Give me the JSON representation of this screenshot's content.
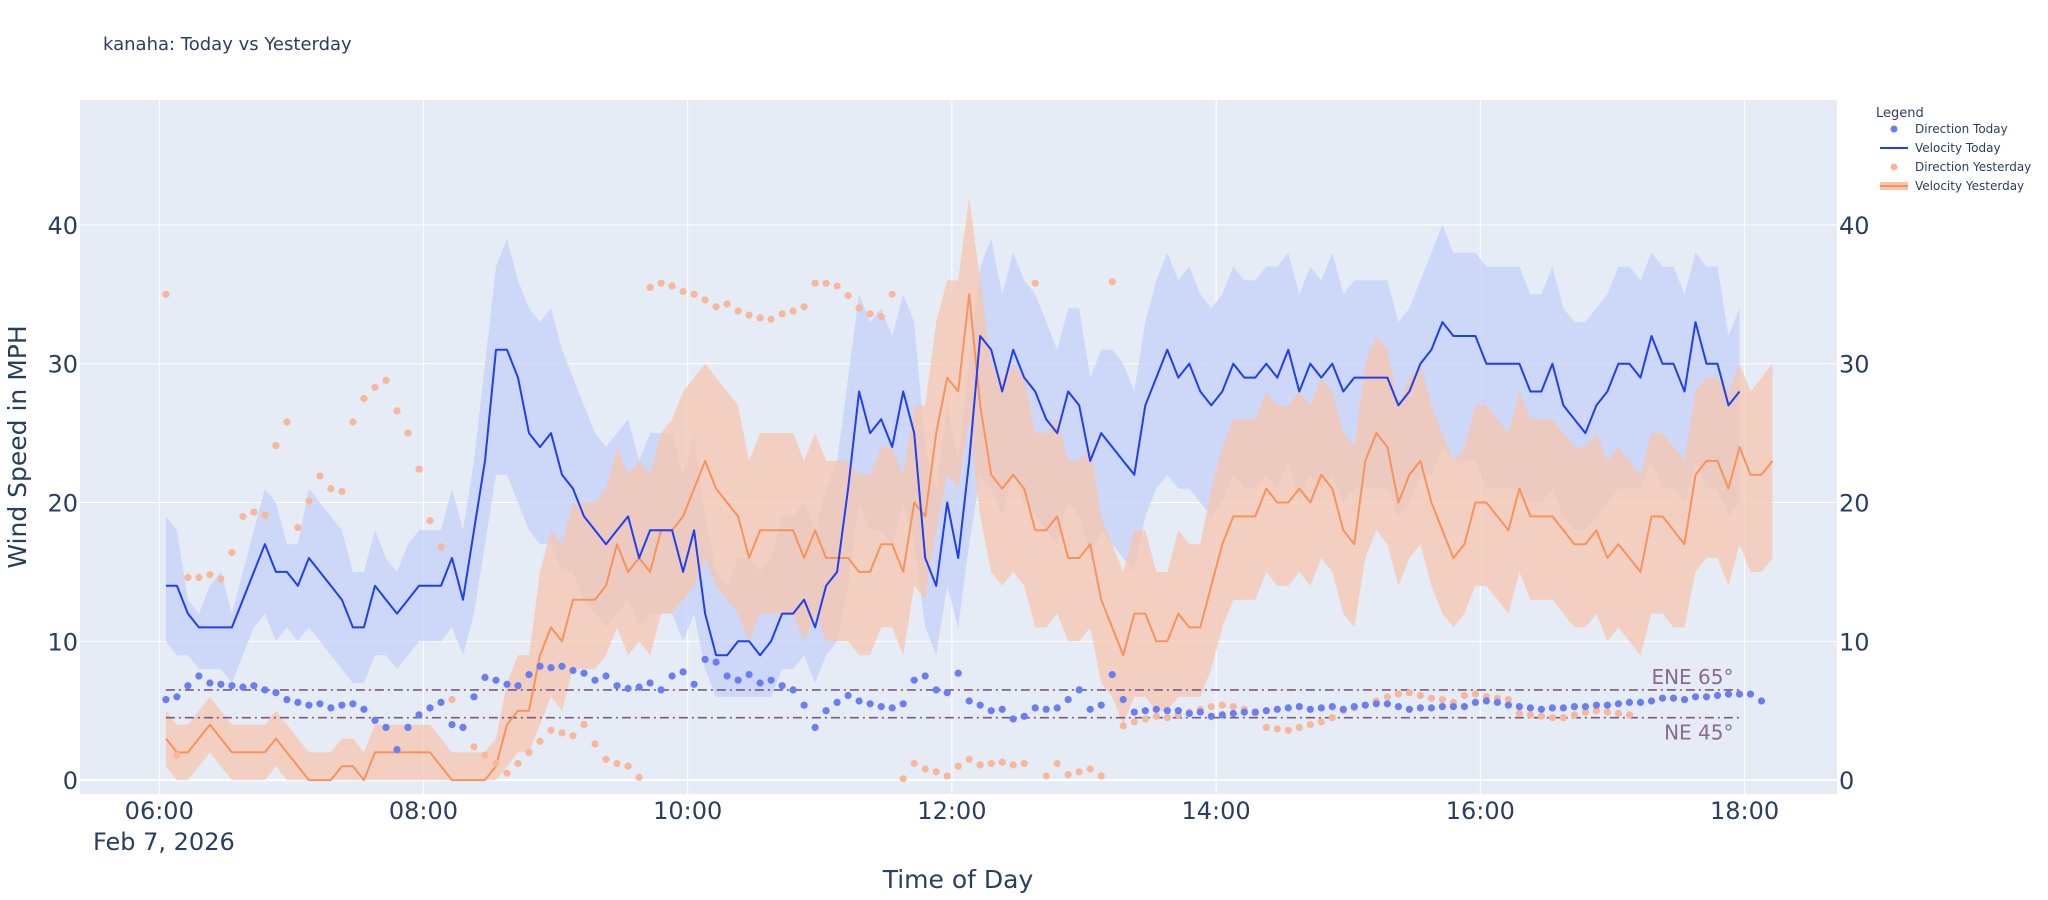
{
  "chart_data": {
    "type": "line",
    "title": "kanaha: Today vs Yesterday",
    "xlabel": "Time of Day",
    "ylabel": "Wind Speed in MPH",
    "date_label": "Feb 7, 2026",
    "x_ticks": [
      "06:00",
      "08:00",
      "10:00",
      "12:00",
      "14:00",
      "16:00",
      "18:00"
    ],
    "x_tick_hours": [
      6,
      8,
      10,
      12,
      14,
      16,
      18
    ],
    "y_ticks": [
      0,
      10,
      20,
      30,
      40
    ],
    "xlim_hours": [
      5.4,
      18.7
    ],
    "ylim": [
      -1,
      49
    ],
    "x_start_hour": 6.05,
    "x_step_hours": 0.0833,
    "legend_title": "Legend",
    "legend_position": "top-right",
    "colors": {
      "today_line": "#1f3ff0",
      "today_band": "#c4d0f7",
      "today_dot": "#6a7df2",
      "yesterday_line": "#f7935c",
      "yesterday_band": "#f6c6ad",
      "yesterday_dot": "#f8b79b",
      "reference": "#7a5a80",
      "plot_bg": "#e5ecf6",
      "grid": "#ffffff"
    },
    "series": [
      {
        "name": "Velocity Today",
        "values": [
          14,
          14,
          12,
          11,
          11,
          11,
          11,
          13,
          15,
          17,
          15,
          15,
          14,
          16,
          15,
          14,
          13,
          11,
          11,
          14,
          13,
          12,
          13,
          14,
          14,
          14,
          16,
          13,
          18,
          23,
          31,
          31,
          29,
          25,
          24,
          25,
          22,
          21,
          19,
          18,
          17,
          18,
          19,
          16,
          18,
          18,
          18,
          15,
          18,
          12,
          9,
          9,
          10,
          10,
          9,
          10,
          12,
          12,
          13,
          11,
          14,
          15,
          21,
          28,
          25,
          26,
          24,
          28,
          25,
          16,
          14,
          20,
          16,
          23,
          32,
          31,
          28,
          31,
          29,
          28,
          26,
          25,
          28,
          27,
          23,
          25,
          24,
          23,
          22,
          27,
          29,
          31,
          29,
          30,
          28,
          27,
          28,
          30,
          29,
          29,
          30,
          29,
          31,
          28,
          30,
          29,
          30,
          28,
          29,
          29,
          29,
          29,
          27,
          28,
          30,
          31,
          33,
          32,
          32,
          32,
          30,
          30,
          30,
          30,
          28,
          28,
          30,
          27,
          26,
          25,
          27,
          28,
          30,
          30,
          29,
          32,
          30,
          30,
          28,
          33,
          30,
          30,
          27,
          28
        ]
      },
      {
        "name": "Velocity Yesterday",
        "values": [
          3,
          2,
          2,
          3,
          4,
          3,
          2,
          2,
          2,
          2,
          3,
          2,
          1,
          0,
          0,
          0,
          1,
          1,
          0,
          2,
          2,
          2,
          2,
          2,
          2,
          1,
          0,
          0,
          0,
          0,
          1,
          4,
          5,
          5,
          9,
          11,
          10,
          13,
          13,
          13,
          14,
          17,
          15,
          16,
          15,
          18,
          18,
          19,
          21,
          23,
          21,
          20,
          19,
          16,
          18,
          18,
          18,
          18,
          16,
          18,
          16,
          16,
          16,
          15,
          15,
          17,
          17,
          15,
          20,
          19,
          25,
          29,
          28,
          35,
          27,
          22,
          21,
          22,
          21,
          18,
          18,
          19,
          16,
          16,
          17,
          13,
          11,
          9,
          12,
          12,
          10,
          10,
          12,
          11,
          11,
          14,
          17,
          19,
          19,
          19,
          21,
          20,
          20,
          21,
          20,
          22,
          21,
          18,
          17,
          23,
          25,
          24,
          20,
          22,
          23,
          20,
          18,
          16,
          17,
          20,
          20,
          19,
          18,
          21,
          19,
          19,
          19,
          18,
          17,
          17,
          18,
          16,
          17,
          16,
          15,
          19,
          19,
          18,
          17,
          22,
          23,
          23,
          21,
          24,
          22,
          22,
          23
        ]
      },
      {
        "name": "Gust Band Today",
        "upper": [
          19,
          18,
          13,
          12,
          14,
          15,
          12,
          15,
          18,
          21,
          20,
          17,
          17,
          21,
          20,
          19,
          18,
          15,
          15,
          18,
          16,
          15,
          17,
          18,
          18,
          18,
          21,
          18,
          23,
          30,
          37,
          39,
          36,
          34,
          33,
          34,
          31,
          29,
          27,
          25,
          24,
          25,
          26,
          23,
          25,
          25,
          25,
          22,
          25,
          19,
          15,
          14,
          16,
          16,
          15,
          16,
          19,
          19,
          20,
          18,
          21,
          23,
          29,
          35,
          33,
          34,
          32,
          35,
          33,
          24,
          21,
          27,
          23,
          30,
          37,
          39,
          35,
          38,
          36,
          35,
          33,
          31,
          34,
          34,
          29,
          31,
          31,
          30,
          28,
          33,
          36,
          38,
          36,
          37,
          35,
          34,
          35,
          37,
          36,
          36,
          37,
          37,
          38,
          35,
          37,
          36,
          38,
          35,
          36,
          36,
          36,
          36,
          33,
          34,
          36,
          38,
          40,
          38,
          38,
          38,
          37,
          37,
          37,
          37,
          35,
          35,
          37,
          34,
          33,
          33,
          34,
          35,
          37,
          37,
          36,
          38,
          37,
          37,
          35,
          38,
          37,
          37,
          32,
          34
        ],
        "lower": [
          10,
          9,
          9,
          8,
          8,
          8,
          7,
          9,
          11,
          12,
          10,
          11,
          10,
          11,
          10,
          9,
          8,
          7,
          7,
          9,
          9,
          8,
          9,
          10,
          10,
          10,
          11,
          9,
          12,
          17,
          22,
          22,
          20,
          18,
          17,
          17,
          15,
          15,
          13,
          12,
          11,
          12,
          13,
          11,
          12,
          12,
          12,
          10,
          12,
          8,
          6,
          6,
          6,
          6,
          6,
          6,
          8,
          8,
          9,
          7,
          9,
          10,
          14,
          20,
          18,
          18,
          17,
          20,
          17,
          11,
          9,
          14,
          11,
          17,
          22,
          21,
          19,
          22,
          20,
          19,
          18,
          17,
          20,
          19,
          16,
          18,
          17,
          16,
          15,
          19,
          21,
          22,
          21,
          21,
          20,
          19,
          20,
          22,
          21,
          21,
          22,
          21,
          23,
          20,
          22,
          21,
          22,
          20,
          21,
          21,
          21,
          21,
          19,
          20,
          22,
          22,
          24,
          23,
          23,
          23,
          21,
          21,
          21,
          21,
          20,
          20,
          21,
          19,
          18,
          18,
          19,
          20,
          21,
          21,
          21,
          23,
          21,
          21,
          20,
          23,
          21,
          21,
          19,
          20
        ]
      },
      {
        "name": "Gust Band Yesterday",
        "upper": [
          5,
          4,
          4,
          5,
          6,
          5,
          4,
          4,
          4,
          4,
          5,
          4,
          3,
          2,
          2,
          2,
          3,
          3,
          2,
          4,
          4,
          4,
          4,
          4,
          4,
          3,
          2,
          2,
          2,
          2,
          3,
          7,
          9,
          9,
          15,
          18,
          17,
          20,
          20,
          20,
          21,
          24,
          22,
          23,
          22,
          25,
          26,
          28,
          29,
          30,
          29,
          28,
          27,
          23,
          25,
          25,
          25,
          25,
          23,
          25,
          23,
          23,
          23,
          22,
          22,
          24,
          24,
          22,
          27,
          27,
          33,
          36,
          36,
          42,
          36,
          30,
          29,
          30,
          29,
          25,
          25,
          26,
          23,
          23,
          24,
          19,
          17,
          15,
          18,
          18,
          15,
          15,
          18,
          17,
          17,
          21,
          24,
          26,
          26,
          26,
          28,
          27,
          27,
          28,
          27,
          29,
          28,
          25,
          24,
          30,
          32,
          31,
          27,
          29,
          30,
          27,
          25,
          23,
          24,
          27,
          27,
          26,
          25,
          28,
          26,
          26,
          26,
          25,
          24,
          24,
          25,
          23,
          24,
          23,
          22,
          25,
          25,
          24,
          23,
          28,
          29,
          29,
          28,
          30,
          28,
          29,
          30
        ],
        "lower": [
          1,
          0,
          0,
          1,
          2,
          1,
          0,
          0,
          0,
          0,
          1,
          0,
          0,
          0,
          0,
          0,
          0,
          0,
          0,
          0,
          0,
          0,
          0,
          0,
          0,
          0,
          0,
          0,
          0,
          0,
          0,
          1,
          2,
          2,
          4,
          6,
          5,
          8,
          8,
          8,
          9,
          11,
          9,
          10,
          9,
          12,
          12,
          13,
          14,
          16,
          14,
          13,
          12,
          10,
          12,
          12,
          12,
          12,
          10,
          12,
          10,
          10,
          10,
          9,
          9,
          11,
          11,
          9,
          14,
          13,
          18,
          22,
          21,
          26,
          19,
          15,
          14,
          15,
          14,
          11,
          11,
          12,
          10,
          10,
          11,
          7,
          6,
          4,
          6,
          6,
          5,
          5,
          6,
          6,
          6,
          8,
          11,
          13,
          13,
          13,
          15,
          14,
          14,
          15,
          14,
          16,
          15,
          12,
          11,
          16,
          18,
          17,
          14,
          16,
          17,
          14,
          12,
          11,
          12,
          14,
          14,
          13,
          12,
          15,
          13,
          13,
          13,
          12,
          11,
          11,
          12,
          10,
          11,
          10,
          9,
          12,
          12,
          11,
          11,
          15,
          16,
          16,
          14,
          17,
          15,
          15,
          16
        ]
      },
      {
        "name": "Direction Today",
        "values": [
          5.8,
          6,
          6.8,
          7.5,
          7,
          6.9,
          6.8,
          6.7,
          6.8,
          6.5,
          6.3,
          5.8,
          5.6,
          5.4,
          5.5,
          5.2,
          5.4,
          5.5,
          5.1,
          4.3,
          3.8,
          2.2,
          3.8,
          4.7,
          5.2,
          5.6,
          4,
          3.8,
          6,
          7.4,
          7.2,
          6.9,
          6.8,
          7.6,
          8.2,
          8.1,
          8.2,
          7.9,
          7.7,
          7.2,
          7.5,
          6.8,
          6.6,
          6.7,
          7,
          6.5,
          7.5,
          7.8,
          6.9,
          8.7,
          8.5,
          7.5,
          7.2,
          7.6,
          7,
          7.2,
          6.8,
          6.5,
          5.4,
          3.8,
          5,
          5.6,
          6.1,
          5.7,
          5.5,
          5.3,
          5.2,
          5.5,
          7.2,
          7.5,
          6.5,
          6.3,
          7.7,
          5.7,
          5.4,
          5,
          5.1,
          4.4,
          4.6,
          5.2,
          5.1,
          5.2,
          5.8,
          6.5,
          5.1,
          5.4,
          7.6,
          5.8,
          4.9,
          5,
          5.1,
          5,
          5,
          4.8,
          4.9,
          4.6,
          4.7,
          4.8,
          4.9,
          4.9,
          5,
          5.1,
          5.2,
          5.3,
          5.1,
          5.2,
          5.3,
          5.1,
          5.3,
          5.4,
          5.5,
          5.5,
          5.3,
          5.1,
          5.2,
          5.2,
          5.3,
          5.3,
          5.3,
          5.6,
          5.7,
          5.6,
          5.4,
          5.3,
          5.2,
          5.1,
          5.2,
          5.2,
          5.3,
          5.3,
          5.4,
          5.4,
          5.5,
          5.6,
          5.6,
          5.7,
          5.9,
          5.9,
          5.8,
          6,
          6,
          6.1,
          6.2,
          6.2,
          6.2,
          5.7
        ]
      },
      {
        "name": "Direction Yesterday",
        "values": [
          35,
          1.8,
          14.6,
          14.6,
          14.8,
          14.5,
          16.4,
          19,
          19.3,
          19.1,
          24.1,
          25.8,
          18.2,
          20.1,
          21.9,
          21,
          20.8,
          25.8,
          27.5,
          28.3,
          28.8,
          26.6,
          25,
          22.4,
          18.7,
          16.8,
          5.8,
          3.8,
          2.4,
          1.8,
          1.2,
          0.5,
          1.2,
          2,
          2.8,
          3.6,
          3.4,
          3.2,
          4,
          2.6,
          1.5,
          1.2,
          1,
          0.2,
          35.5,
          35.8,
          35.6,
          35.2,
          35,
          34.6,
          34.1,
          34.3,
          33.8,
          33.5,
          33.3,
          33.2,
          33.6,
          33.8,
          34.1,
          35.8,
          35.8,
          35.6,
          34.9,
          34,
          33.6,
          33.4,
          35,
          0.1,
          1.2,
          0.8,
          0.6,
          0.3,
          1,
          1.5,
          1.1,
          1.2,
          1.3,
          1.1,
          1.2,
          35.8,
          0.3,
          1.2,
          0.4,
          0.6,
          0.8,
          0.3,
          35.9,
          3.9,
          4.2,
          4.4,
          4.6,
          4.5,
          4.7,
          4.9,
          5.1,
          5.3,
          5.4,
          5.3,
          5.1,
          4.8,
          3.8,
          3.7,
          3.6,
          3.8,
          4,
          4.2,
          4.5,
          5,
          5.2,
          5.4,
          5.7,
          6,
          6.2,
          6.3,
          6.1,
          5.9,
          5.8,
          5.6,
          6.1,
          6.2,
          6,
          5.9,
          5.8,
          4.8,
          4.7,
          4.6,
          4.5,
          4.5,
          4.7,
          4.9,
          5,
          4.9,
          4.8,
          4.7
        ]
      }
    ],
    "reference_lines": [
      {
        "label": "ENE 65°",
        "value": 6.5
      },
      {
        "label": "NE 45°",
        "value": 4.5
      }
    ],
    "legend": [
      {
        "label": "Direction Today",
        "kind": "dot",
        "color_key": "today_dot"
      },
      {
        "label": "Velocity Today",
        "kind": "line",
        "color_key": "today_line"
      },
      {
        "label": "Direction Yesterday",
        "kind": "dot",
        "color_key": "yesterday_dot"
      },
      {
        "label": "Velocity Yesterday",
        "kind": "band-line",
        "color_key": "yesterday_line"
      }
    ]
  }
}
